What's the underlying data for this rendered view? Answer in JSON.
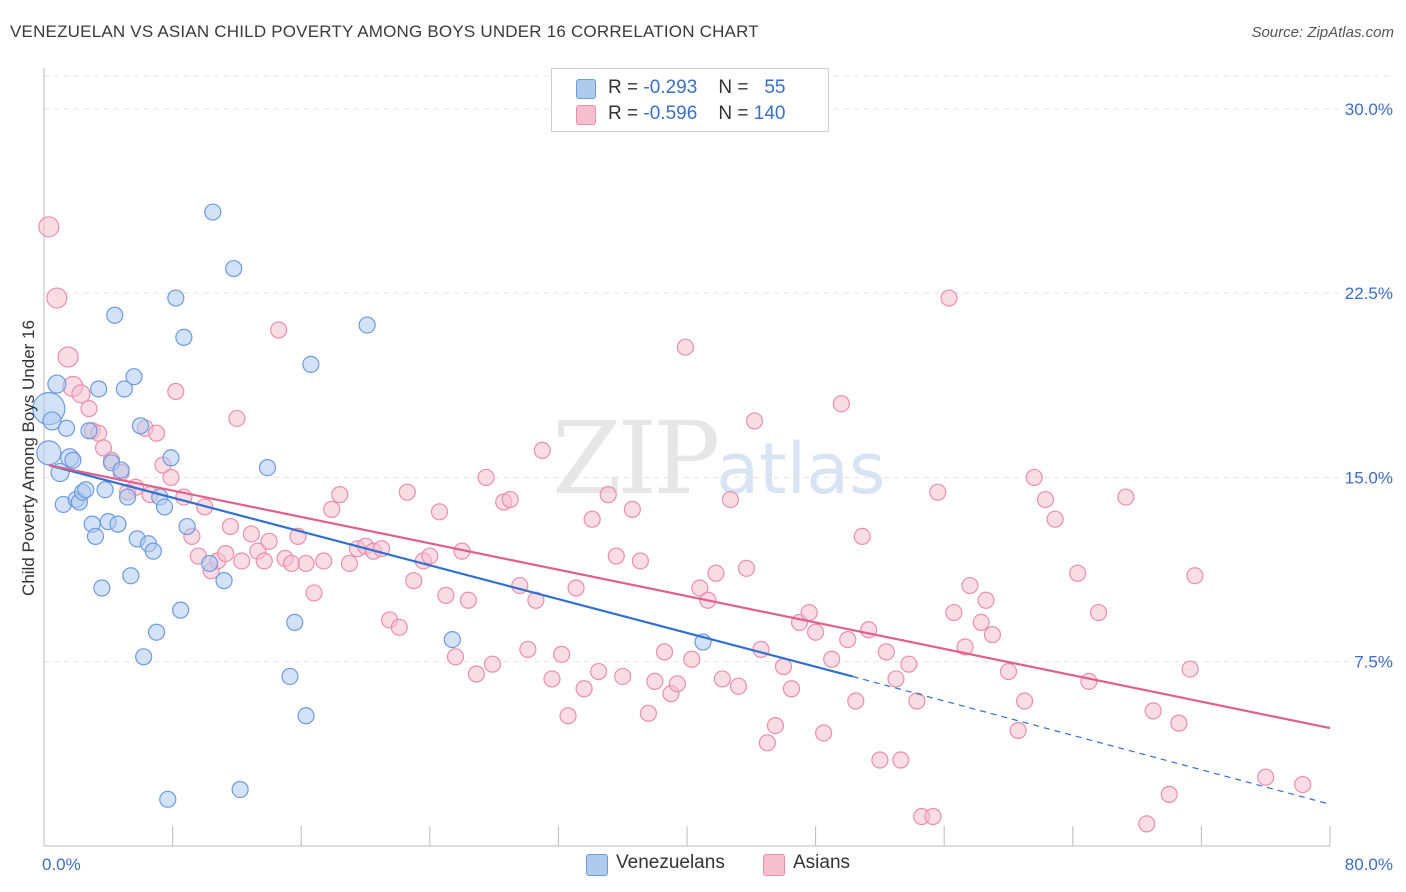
{
  "header": {
    "title": "VENEZUELAN VS ASIAN CHILD POVERTY AMONG BOYS UNDER 16 CORRELATION CHART",
    "source": "Source: ZipAtlas.com"
  },
  "watermark": {
    "zip": "ZIP",
    "atlas": "atlas"
  },
  "legend": {
    "rows": [
      {
        "r_label": "R =",
        "r_value": "-0.293",
        "n_label": "N =",
        "n_value": "55"
      },
      {
        "r_label": "R =",
        "r_value": "-0.596",
        "n_label": "N =",
        "n_value": "140"
      }
    ],
    "bottom": [
      {
        "label": "Venezuelans"
      },
      {
        "label": "Asians"
      }
    ]
  },
  "colors": {
    "venezuelans_fill": "#aecbee",
    "venezuelans_stroke": "#6d9be0",
    "venezuelans_line": "#3070d0",
    "asians_fill": "#f6bfd0",
    "asians_stroke": "#ea8fab",
    "asians_line": "#e0608c",
    "grid": "#e4e4e4",
    "tick_text": "#3b6fc4"
  },
  "chart_data": {
    "type": "scatter",
    "title": "VENEZUELAN VS ASIAN CHILD POVERTY AMONG BOYS UNDER 16 CORRELATION CHART",
    "xlabel": "",
    "ylabel": "Child Poverty Among Boys Under 16",
    "xlim": [
      0,
      80
    ],
    "ylim": [
      0,
      31.5
    ],
    "x_tick_labels": [
      {
        "value": 0,
        "label": "0.0%"
      },
      {
        "value": 80,
        "label": "80.0%"
      }
    ],
    "y_tick_labels": [
      {
        "value": 7.5,
        "label": "7.5%"
      },
      {
        "value": 15,
        "label": "15.0%"
      },
      {
        "value": 22.5,
        "label": "22.5%"
      },
      {
        "value": 30,
        "label": "30.0%"
      }
    ],
    "x_minor_ticks": [
      0,
      8,
      16,
      24,
      32,
      40,
      48,
      56,
      64,
      72,
      80
    ],
    "grid": true,
    "legend_position": "top-center",
    "series": [
      {
        "name": "Venezuelans",
        "trend": {
          "x_start": 0.3,
          "y_start": 15.5,
          "x_end": 50.3,
          "y_end": 6.9,
          "dashed_to_x": 80,
          "dashed_to_y": 1.7
        },
        "points": [
          [
            0.3,
            17.8,
            16
          ],
          [
            0.3,
            16.0,
            12
          ],
          [
            0.5,
            17.3,
            9
          ],
          [
            0.8,
            18.8,
            9
          ],
          [
            1.0,
            15.2,
            9
          ],
          [
            1.2,
            13.9,
            8
          ],
          [
            1.4,
            17.0,
            8
          ],
          [
            1.6,
            15.8,
            9
          ],
          [
            1.8,
            15.7,
            8
          ],
          [
            2.0,
            14.1,
            8
          ],
          [
            2.2,
            14.0,
            8
          ],
          [
            2.4,
            14.4,
            8
          ],
          [
            2.6,
            14.5,
            8
          ],
          [
            2.8,
            16.9,
            8
          ],
          [
            3.0,
            13.1,
            8
          ],
          [
            3.2,
            12.6,
            8
          ],
          [
            3.4,
            18.6,
            8
          ],
          [
            3.6,
            10.5,
            8
          ],
          [
            3.8,
            14.5,
            8
          ],
          [
            4.0,
            13.2,
            8
          ],
          [
            4.2,
            15.6,
            8
          ],
          [
            4.4,
            21.6,
            8
          ],
          [
            4.6,
            13.1,
            8
          ],
          [
            4.8,
            15.3,
            8
          ],
          [
            5.0,
            18.6,
            8
          ],
          [
            5.2,
            14.2,
            8
          ],
          [
            5.4,
            11.0,
            8
          ],
          [
            5.6,
            19.1,
            8
          ],
          [
            5.8,
            12.5,
            8
          ],
          [
            6.0,
            17.1,
            8
          ],
          [
            6.2,
            7.7,
            8
          ],
          [
            6.5,
            12.3,
            8
          ],
          [
            6.8,
            12.0,
            8
          ],
          [
            7.0,
            8.7,
            8
          ],
          [
            7.2,
            14.2,
            8
          ],
          [
            7.5,
            13.8,
            8
          ],
          [
            7.7,
            1.9,
            8
          ],
          [
            7.9,
            15.8,
            8
          ],
          [
            8.2,
            22.3,
            8
          ],
          [
            8.5,
            9.6,
            8
          ],
          [
            8.7,
            20.7,
            8
          ],
          [
            8.9,
            13.0,
            8
          ],
          [
            10.3,
            11.5,
            8
          ],
          [
            10.5,
            25.8,
            8
          ],
          [
            11.2,
            10.8,
            8
          ],
          [
            11.8,
            23.5,
            8
          ],
          [
            12.2,
            2.3,
            8
          ],
          [
            13.9,
            15.4,
            8
          ],
          [
            15.3,
            6.9,
            8
          ],
          [
            15.6,
            9.1,
            8
          ],
          [
            16.3,
            5.3,
            8
          ],
          [
            16.6,
            19.6,
            8
          ],
          [
            20.1,
            21.2,
            8
          ],
          [
            25.4,
            8.4,
            8
          ],
          [
            41.0,
            8.3,
            8
          ]
        ]
      },
      {
        "name": "Asians",
        "trend": {
          "x_start": 0.3,
          "y_start": 15.5,
          "x_end": 80,
          "y_end": 4.8
        },
        "points": [
          [
            0.3,
            25.2,
            10
          ],
          [
            0.8,
            22.3,
            10
          ],
          [
            1.5,
            19.9,
            10
          ],
          [
            1.8,
            18.7,
            10
          ],
          [
            2.3,
            18.4,
            9
          ],
          [
            2.8,
            17.8,
            8
          ],
          [
            3.0,
            16.9,
            8
          ],
          [
            3.4,
            16.8,
            8
          ],
          [
            3.7,
            16.2,
            8
          ],
          [
            4.2,
            15.7,
            8
          ],
          [
            4.8,
            15.2,
            8
          ],
          [
            5.2,
            14.4,
            8
          ],
          [
            5.7,
            14.6,
            8
          ],
          [
            6.3,
            17.0,
            8
          ],
          [
            6.6,
            14.3,
            8
          ],
          [
            7.0,
            16.8,
            8
          ],
          [
            7.4,
            15.5,
            8
          ],
          [
            7.9,
            15.0,
            8
          ],
          [
            8.2,
            18.5,
            8
          ],
          [
            8.7,
            14.2,
            8
          ],
          [
            9.2,
            12.6,
            8
          ],
          [
            9.6,
            11.8,
            8
          ],
          [
            10.0,
            13.8,
            8
          ],
          [
            10.4,
            11.2,
            8
          ],
          [
            10.8,
            11.6,
            8
          ],
          [
            11.3,
            11.9,
            8
          ],
          [
            11.6,
            13.0,
            8
          ],
          [
            12.0,
            17.4,
            8
          ],
          [
            12.3,
            11.6,
            8
          ],
          [
            12.9,
            12.7,
            8
          ],
          [
            13.3,
            12.0,
            8
          ],
          [
            13.7,
            11.6,
            8
          ],
          [
            14.0,
            12.4,
            8
          ],
          [
            14.6,
            21.0,
            8
          ],
          [
            15.0,
            11.7,
            8
          ],
          [
            15.4,
            11.5,
            8
          ],
          [
            15.8,
            12.6,
            8
          ],
          [
            16.3,
            11.5,
            8
          ],
          [
            16.8,
            10.3,
            8
          ],
          [
            17.4,
            11.6,
            8
          ],
          [
            17.9,
            13.7,
            8
          ],
          [
            18.4,
            14.3,
            8
          ],
          [
            19.0,
            11.5,
            8
          ],
          [
            19.5,
            12.1,
            8
          ],
          [
            20.0,
            12.2,
            8
          ],
          [
            20.5,
            12.0,
            8
          ],
          [
            21.0,
            12.1,
            8
          ],
          [
            21.5,
            9.2,
            8
          ],
          [
            22.1,
            8.9,
            8
          ],
          [
            22.6,
            14.4,
            8
          ],
          [
            23.0,
            10.8,
            8
          ],
          [
            23.6,
            11.6,
            8
          ],
          [
            24.0,
            11.8,
            8
          ],
          [
            24.6,
            13.6,
            8
          ],
          [
            25.0,
            10.2,
            8
          ],
          [
            25.6,
            7.7,
            8
          ],
          [
            26.0,
            12.0,
            8
          ],
          [
            26.4,
            10.0,
            8
          ],
          [
            26.9,
            7.0,
            8
          ],
          [
            27.5,
            15.0,
            8
          ],
          [
            27.9,
            7.4,
            8
          ],
          [
            28.6,
            14.0,
            8
          ],
          [
            29.0,
            14.1,
            8
          ],
          [
            29.6,
            10.6,
            8
          ],
          [
            30.1,
            8.0,
            8
          ],
          [
            30.6,
            10.0,
            8
          ],
          [
            31.0,
            16.1,
            8
          ],
          [
            31.6,
            6.8,
            8
          ],
          [
            32.2,
            7.8,
            8
          ],
          [
            32.6,
            5.3,
            8
          ],
          [
            33.1,
            10.5,
            8
          ],
          [
            33.6,
            6.4,
            8
          ],
          [
            34.1,
            13.3,
            8
          ],
          [
            34.5,
            7.1,
            8
          ],
          [
            35.1,
            14.3,
            8
          ],
          [
            35.6,
            11.8,
            8
          ],
          [
            36.0,
            6.9,
            8
          ],
          [
            36.6,
            13.7,
            8
          ],
          [
            37.1,
            11.6,
            8
          ],
          [
            37.6,
            5.4,
            8
          ],
          [
            38.0,
            6.7,
            8
          ],
          [
            38.6,
            7.9,
            8
          ],
          [
            39.0,
            6.2,
            8
          ],
          [
            39.4,
            6.6,
            8
          ],
          [
            39.9,
            20.3,
            8
          ],
          [
            40.3,
            7.6,
            8
          ],
          [
            40.8,
            10.5,
            8
          ],
          [
            41.3,
            10.0,
            8
          ],
          [
            41.8,
            11.1,
            8
          ],
          [
            42.2,
            6.8,
            8
          ],
          [
            42.7,
            14.1,
            8
          ],
          [
            43.2,
            6.5,
            8
          ],
          [
            43.7,
            11.3,
            8
          ],
          [
            44.2,
            17.3,
            8
          ],
          [
            44.6,
            8.0,
            8
          ],
          [
            45.0,
            4.2,
            8
          ],
          [
            45.5,
            4.9,
            8
          ],
          [
            46.0,
            7.3,
            8
          ],
          [
            46.5,
            6.4,
            8
          ],
          [
            47.0,
            9.1,
            8
          ],
          [
            47.6,
            9.5,
            8
          ],
          [
            48.0,
            8.7,
            8
          ],
          [
            48.5,
            4.6,
            8
          ],
          [
            49.0,
            7.6,
            8
          ],
          [
            49.6,
            18.0,
            8
          ],
          [
            50.0,
            8.4,
            8
          ],
          [
            50.5,
            5.9,
            8
          ],
          [
            50.9,
            12.6,
            8
          ],
          [
            51.3,
            8.8,
            8
          ],
          [
            52.0,
            3.5,
            8
          ],
          [
            52.4,
            7.9,
            8
          ],
          [
            53.0,
            6.8,
            8
          ],
          [
            53.3,
            3.5,
            8
          ],
          [
            53.8,
            7.4,
            8
          ],
          [
            54.3,
            5.9,
            8
          ],
          [
            54.6,
            1.2,
            8
          ],
          [
            55.3,
            1.2,
            8
          ],
          [
            55.6,
            14.4,
            8
          ],
          [
            56.3,
            22.3,
            8
          ],
          [
            56.6,
            9.5,
            8
          ],
          [
            57.3,
            8.1,
            8
          ],
          [
            57.6,
            10.6,
            8
          ],
          [
            58.3,
            9.1,
            8
          ],
          [
            58.6,
            10.0,
            8
          ],
          [
            59.0,
            8.6,
            8
          ],
          [
            60.0,
            7.1,
            8
          ],
          [
            60.6,
            4.7,
            8
          ],
          [
            61.0,
            5.9,
            8
          ],
          [
            61.6,
            15.0,
            8
          ],
          [
            62.3,
            14.1,
            8
          ],
          [
            62.9,
            13.3,
            8
          ],
          [
            64.3,
            11.1,
            8
          ],
          [
            65.0,
            6.7,
            8
          ],
          [
            65.6,
            9.5,
            8
          ],
          [
            67.3,
            14.2,
            8
          ],
          [
            68.6,
            0.9,
            8
          ],
          [
            69.0,
            5.5,
            8
          ],
          [
            70.0,
            2.1,
            8
          ],
          [
            70.6,
            5.0,
            8
          ],
          [
            71.3,
            7.2,
            8
          ],
          [
            71.6,
            11.0,
            8
          ],
          [
            76.0,
            2.8,
            8
          ],
          [
            78.3,
            2.5,
            8
          ]
        ]
      }
    ]
  }
}
